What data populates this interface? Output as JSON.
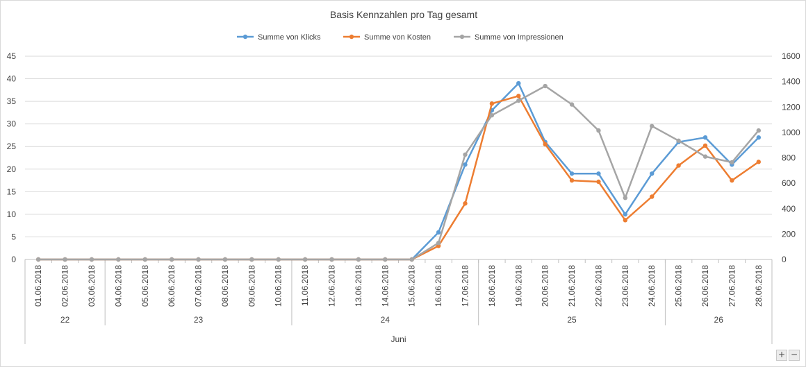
{
  "chart_data": {
    "type": "line",
    "title": "Basis Kennzahlen pro Tag gesamt",
    "categories": [
      "01.06.2018",
      "02.06.2018",
      "03.06.2018",
      "04.06.2018",
      "05.06.2018",
      "06.06.2018",
      "07.06.2018",
      "08.06.2018",
      "09.06.2018",
      "10.06.2018",
      "11.06.2018",
      "12.06.2018",
      "13.06.2018",
      "14.06.2018",
      "15.06.2018",
      "16.06.2018",
      "17.06.2018",
      "18.06.2018",
      "19.06.2018",
      "20.06.2018",
      "21.06.2018",
      "22.06.2018",
      "23.06.2018",
      "24.06.2018",
      "25.06.2018",
      "26.06.2018",
      "27.06.2018",
      "28.06.2018"
    ],
    "week_groups": [
      {
        "label": "22",
        "count": 3
      },
      {
        "label": "23",
        "count": 7
      },
      {
        "label": "24",
        "count": 7
      },
      {
        "label": "25",
        "count": 7
      },
      {
        "label": "26",
        "count": 4
      }
    ],
    "month_label": "Juni",
    "y_left": {
      "min": 0,
      "max": 45,
      "step": 5
    },
    "y_right": {
      "min": 0,
      "max": 1600,
      "step": 200
    },
    "grid": true,
    "legend_position": "top",
    "series": [
      {
        "name": "Summe von Klicks",
        "axis": "left",
        "color": "#5b9bd5",
        "values": [
          0,
          0,
          0,
          0,
          0,
          0,
          0,
          0,
          0,
          0,
          0,
          0,
          0,
          0,
          0,
          6,
          21,
          33,
          39,
          26,
          19,
          19,
          10,
          19,
          26,
          27,
          21,
          27
        ]
      },
      {
        "name": "Summe von Kosten",
        "axis": "left",
        "color": "#ed7d31",
        "values": [
          0,
          0,
          0,
          0,
          0,
          0,
          0,
          0,
          0,
          0,
          0,
          0,
          0,
          0,
          0,
          3,
          12.4,
          34.5,
          36.2,
          25.5,
          17.5,
          17.2,
          8.7,
          13.9,
          20.8,
          25.2,
          17.5,
          21.6
        ]
      },
      {
        "name": "Summe von Impressionen",
        "axis": "right",
        "color": "#a5a5a5",
        "values": [
          0,
          0,
          0,
          0,
          0,
          0,
          0,
          0,
          0,
          0,
          0,
          0,
          0,
          0,
          0,
          130,
          825,
          1135,
          1250,
          1365,
          1220,
          1015,
          485,
          1050,
          935,
          810,
          765,
          1015
        ]
      }
    ]
  },
  "controls": {
    "zoom_in": "+",
    "zoom_out": "−"
  }
}
